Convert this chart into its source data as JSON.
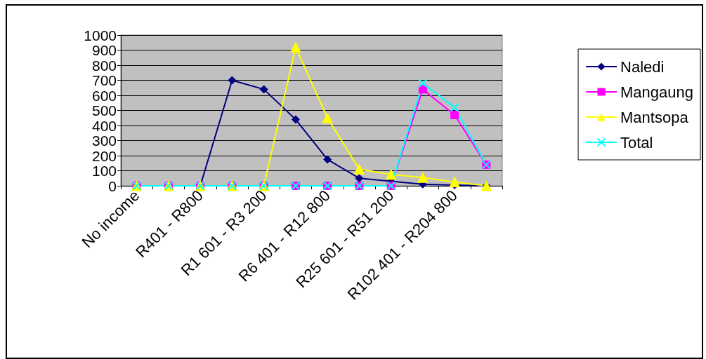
{
  "chart_data": {
    "type": "line",
    "categories": [
      "No income",
      null,
      "R401 - R800",
      null,
      "R1 601 - R3 200",
      null,
      "R6 401 - R12 800",
      null,
      "R25 601 - R51 200",
      null,
      "R102 401 - R204 800",
      null
    ],
    "series": [
      {
        "name": "Naledi",
        "color": "#000080",
        "marker": "diamond",
        "values": [
          0,
          0,
          0,
          700,
          640,
          440,
          175,
          50,
          30,
          10,
          5,
          0
        ]
      },
      {
        "name": "Mangaung",
        "color": "#ff00ff",
        "marker": "square",
        "values": [
          0,
          0,
          0,
          0,
          0,
          0,
          0,
          0,
          0,
          640,
          470,
          140
        ]
      },
      {
        "name": "Mantsopa",
        "color": "#ffff00",
        "marker": "triangle",
        "values": [
          0,
          0,
          0,
          0,
          0,
          920,
          450,
          110,
          75,
          55,
          25,
          0
        ]
      },
      {
        "name": "Total",
        "color": "#00ffff",
        "marker": "cross",
        "values": [
          0,
          0,
          0,
          0,
          0,
          0,
          0,
          0,
          0,
          680,
          520,
          140
        ]
      }
    ],
    "ylim": [
      0,
      1000
    ],
    "yticks": [
      0,
      100,
      200,
      300,
      400,
      500,
      600,
      700,
      800,
      900,
      1000
    ],
    "grid": "y",
    "legend": "right",
    "line_style": "solid"
  }
}
